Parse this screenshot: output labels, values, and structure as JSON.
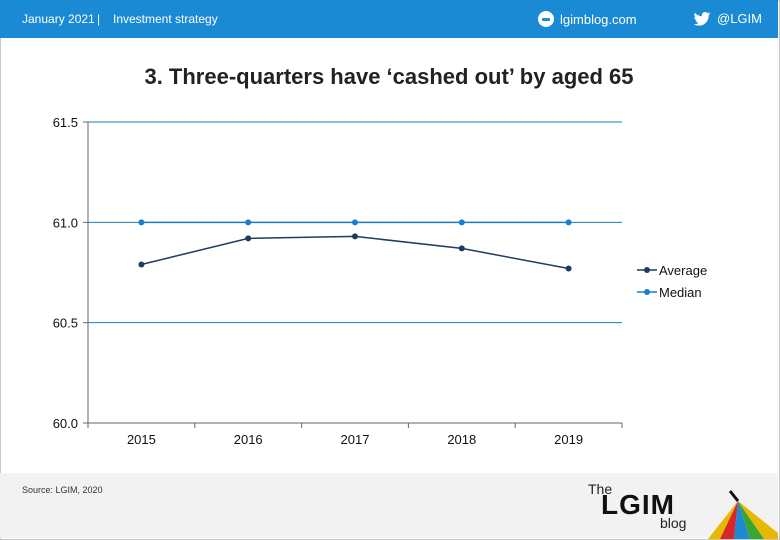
{
  "header": {
    "date": "January 2021",
    "separator": "|",
    "section": "Investment strategy",
    "site": "lgimblog.com",
    "twitter": "@LGIM",
    "bar_color": "#1a8ad4"
  },
  "footer": {
    "source": "Source: LGIM, 2020",
    "logo_the": "The",
    "logo_name": "LGIM",
    "logo_blog": "blog"
  },
  "chart_data": {
    "type": "line",
    "title": "3. Three-quarters have ‘cashed out’ by aged 65",
    "xlabel": "",
    "ylabel": "",
    "categories": [
      "2015",
      "2016",
      "2017",
      "2018",
      "2019"
    ],
    "ylim": [
      60.0,
      61.5
    ],
    "yticks": [
      "60.0",
      "60.5",
      "61.0",
      "61.5"
    ],
    "ytick_values": [
      60.0,
      60.5,
      61.0,
      61.5
    ],
    "grid": true,
    "legend_position": "right",
    "series": [
      {
        "name": "Average",
        "values": [
          60.79,
          60.92,
          60.93,
          60.87,
          60.77
        ],
        "color": "#1f3b63"
      },
      {
        "name": "Median",
        "values": [
          61.0,
          61.0,
          61.0,
          61.0,
          61.0
        ],
        "color": "#1a7fc8"
      }
    ]
  }
}
